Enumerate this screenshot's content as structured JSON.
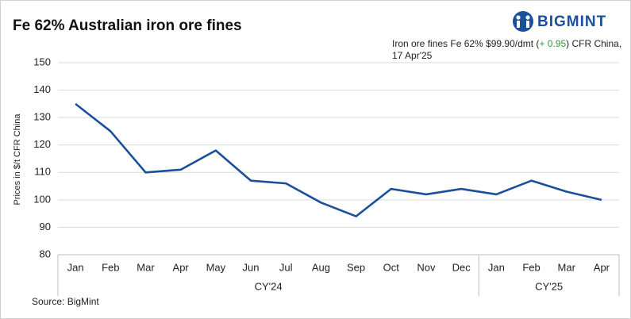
{
  "chart_data": {
    "type": "line",
    "title": "Fe 62% Australian iron ore fines",
    "brand": "BIGMINT",
    "annotation": {
      "text_before": "Iron ore fines Fe 62% $99.90/dmt (",
      "change": "+ 0.95",
      "text_after": ") CFR China,",
      "date": "17 Apr'25"
    },
    "y_label": "Prices in $/t CFR China",
    "source": "Source: BigMint",
    "category_groups": [
      {
        "label": "CY'24",
        "categories": [
          "Jan",
          "Feb",
          "Mar",
          "Apr",
          "May",
          "Jun",
          "Jul",
          "Aug",
          "Sep",
          "Oct",
          "Nov",
          "Dec"
        ]
      },
      {
        "label": "CY'25",
        "categories": [
          "Jan",
          "Feb",
          "Mar",
          "Apr"
        ]
      }
    ],
    "series": [
      {
        "color": "#1a4f9c",
        "values": [
          135,
          125,
          110,
          111,
          118,
          107,
          106,
          99,
          94,
          104,
          102,
          104,
          102,
          107,
          103,
          100
        ]
      }
    ],
    "ylim": [
      80,
      150
    ],
    "yticks": [
      80,
      90,
      100,
      110,
      120,
      130,
      140,
      150
    ],
    "grid": true,
    "change_color": "#2e9e3e"
  }
}
